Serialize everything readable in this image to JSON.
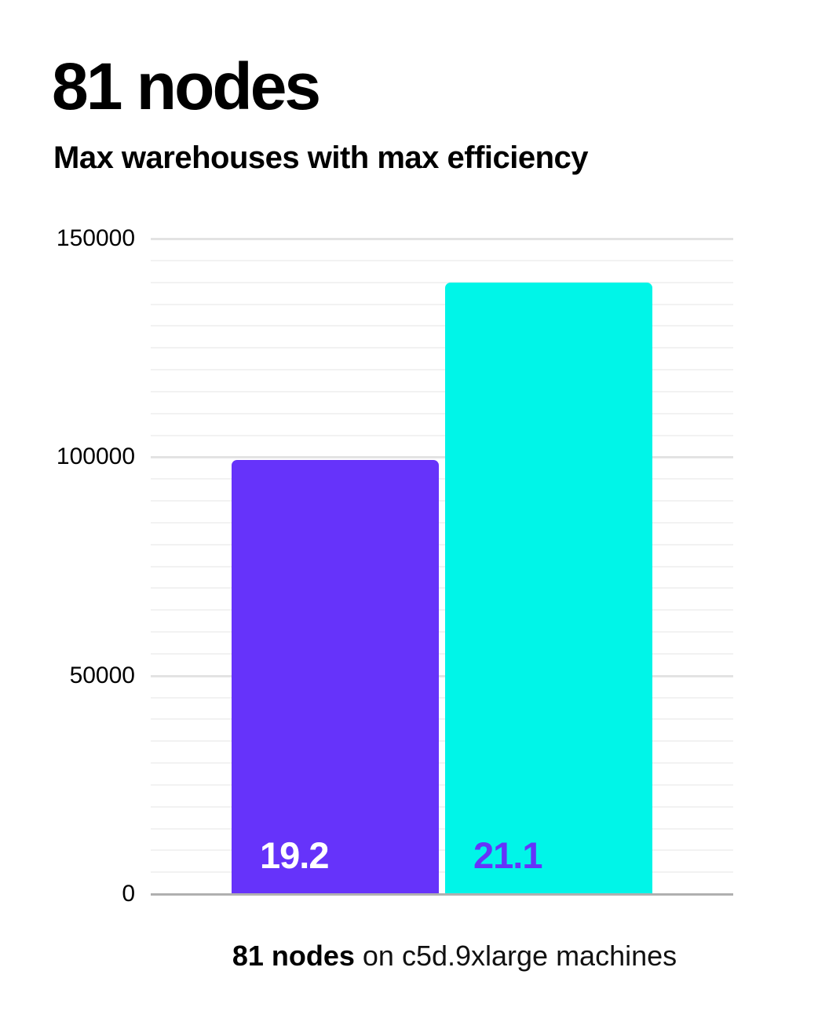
{
  "header": {
    "title": "81 nodes",
    "subtitle": "Max warehouses with max efficiency"
  },
  "chart_data": {
    "type": "bar",
    "title": "81 nodes",
    "subtitle": "Max warehouses with max efficiency",
    "xlabel": "",
    "ylabel": "",
    "ylim": [
      0,
      150000
    ],
    "yticks": [
      0,
      50000,
      100000,
      150000
    ],
    "minor_gridline_step": 5000,
    "major_gridline_step": 50000,
    "grid": "horizontal",
    "legend": "none",
    "bars": [
      {
        "name": "bar-1",
        "data_label": "19.2",
        "value": 99400,
        "color": "#6633fa",
        "label_color": "#ffffff"
      },
      {
        "name": "bar-2",
        "data_label": "21.1",
        "value": 140000,
        "color": "#00f5e8",
        "label_color": "#6633fa"
      }
    ],
    "caption": {
      "bold": "81 nodes",
      "rest": " on c5d.9xlarge machines"
    }
  },
  "colors": {
    "bar_purple": "#6633fa",
    "bar_cyan": "#00f5e8",
    "axis_line": "#b0b0b0",
    "grid_major": "#e3e3e3",
    "grid_minor": "#f2f2f2",
    "text": "#000000"
  }
}
